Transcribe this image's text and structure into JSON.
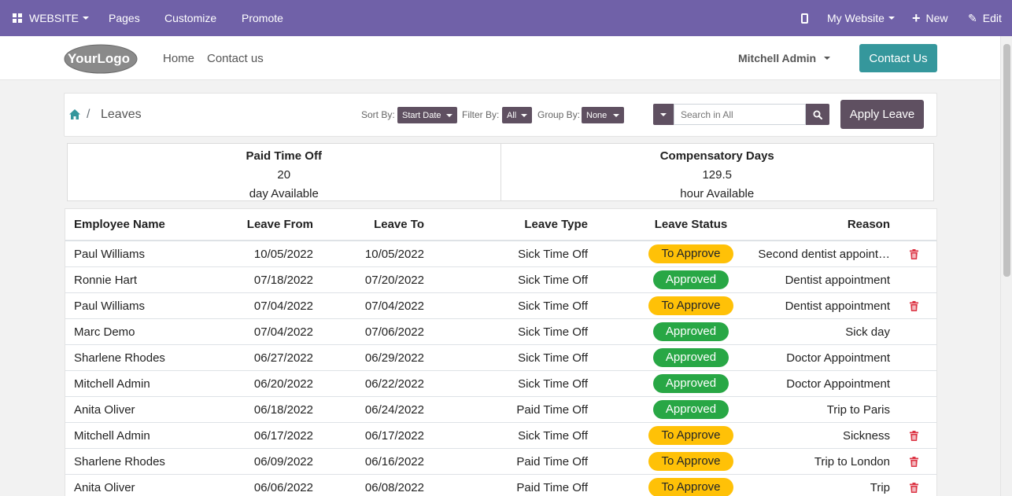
{
  "topbar": {
    "website_label": "WEBSITE",
    "pages_label": "Pages",
    "customize_label": "Customize",
    "promote_label": "Promote",
    "my_website_label": "My Website",
    "new_label": "New",
    "edit_label": "Edit"
  },
  "header": {
    "logo_text": "YourLogo",
    "nav": {
      "home": "Home",
      "contact": "Contact us"
    },
    "user": "Mitchell Admin",
    "contact_button": "Contact Us"
  },
  "controls": {
    "breadcrumb_sep": "/",
    "title": "Leaves",
    "sort_label": "Sort By:",
    "sort_value": "Start Date",
    "filter_label": "Filter By:",
    "filter_value": "All",
    "group_label": "Group By:",
    "group_value": "None",
    "search_placeholder": "Search in All",
    "apply_button": "Apply Leave"
  },
  "summary": [
    {
      "title": "Paid Time Off",
      "value": "20",
      "unit": "day Available"
    },
    {
      "title": "Compensatory Days",
      "value": "129.5",
      "unit": "hour Available"
    }
  ],
  "table": {
    "headers": {
      "employee": "Employee Name",
      "from": "Leave From",
      "to": "Leave To",
      "type": "Leave Type",
      "status": "Leave Status",
      "reason": "Reason"
    },
    "rows": [
      {
        "employee": "Paul Williams",
        "from": "10/05/2022",
        "to": "10/05/2022",
        "type": "Sick Time Off",
        "status": "To Approve",
        "reason": "Second dentist appoint…",
        "deletable": true
      },
      {
        "employee": "Ronnie Hart",
        "from": "07/18/2022",
        "to": "07/20/2022",
        "type": "Sick Time Off",
        "status": "Approved",
        "reason": "Dentist appointment",
        "deletable": false
      },
      {
        "employee": "Paul Williams",
        "from": "07/04/2022",
        "to": "07/04/2022",
        "type": "Sick Time Off",
        "status": "To Approve",
        "reason": "Dentist appointment",
        "deletable": true
      },
      {
        "employee": "Marc Demo",
        "from": "07/04/2022",
        "to": "07/06/2022",
        "type": "Sick Time Off",
        "status": "Approved",
        "reason": "Sick day",
        "deletable": false
      },
      {
        "employee": "Sharlene Rhodes",
        "from": "06/27/2022",
        "to": "06/29/2022",
        "type": "Sick Time Off",
        "status": "Approved",
        "reason": "Doctor Appointment",
        "deletable": false
      },
      {
        "employee": "Mitchell Admin",
        "from": "06/20/2022",
        "to": "06/22/2022",
        "type": "Sick Time Off",
        "status": "Approved",
        "reason": "Doctor Appointment",
        "deletable": false
      },
      {
        "employee": "Anita Oliver",
        "from": "06/18/2022",
        "to": "06/24/2022",
        "type": "Paid Time Off",
        "status": "Approved",
        "reason": "Trip to Paris",
        "deletable": false
      },
      {
        "employee": "Mitchell Admin",
        "from": "06/17/2022",
        "to": "06/17/2022",
        "type": "Sick Time Off",
        "status": "To Approve",
        "reason": "Sickness",
        "deletable": true
      },
      {
        "employee": "Sharlene Rhodes",
        "from": "06/09/2022",
        "to": "06/16/2022",
        "type": "Paid Time Off",
        "status": "To Approve",
        "reason": "Trip to London",
        "deletable": true
      },
      {
        "employee": "Anita Oliver",
        "from": "06/06/2022",
        "to": "06/08/2022",
        "type": "Paid Time Off",
        "status": "To Approve",
        "reason": "Trip",
        "deletable": true
      }
    ]
  },
  "colors": {
    "topbar": "#7061a8",
    "primary": "#5f5061",
    "contact": "#35979c",
    "to_approve": "#ffc107",
    "approved": "#28a745",
    "danger": "#dc3545"
  },
  "icons": {
    "apps": "apps-grid-icon",
    "mobile": "mobile-icon",
    "new": "plus-icon",
    "edit": "pencil-icon",
    "home": "home-icon",
    "search": "search-icon",
    "delete": "trash-icon"
  }
}
